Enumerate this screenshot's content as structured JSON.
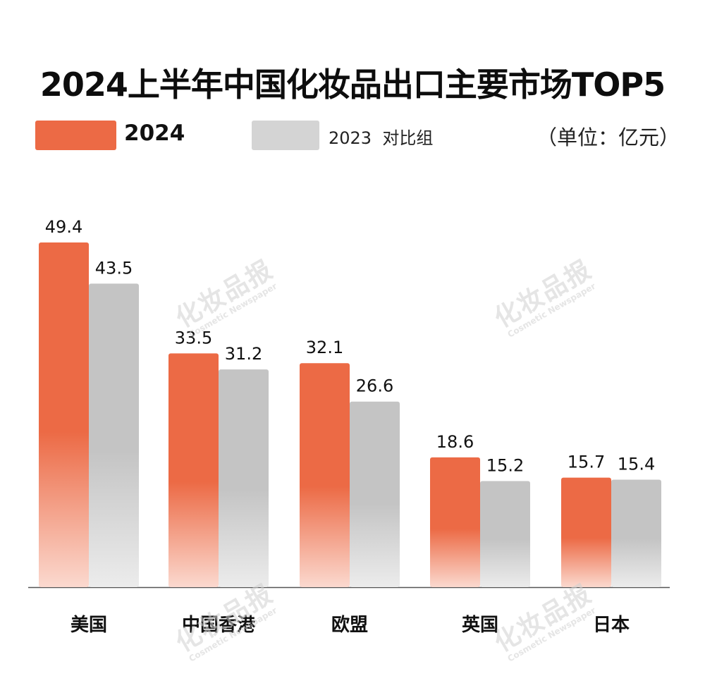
{
  "title": "2024上半年中国化妆品出口主要市场TOP5",
  "legend": {
    "primary_label": "2024",
    "secondary_label": "2023  对比组",
    "unit_label": "（单位：亿元）"
  },
  "watermark": {
    "main": "化妆品报",
    "sub": "Cosmetic Newspaper"
  },
  "colors": {
    "primary": "#ec6a45",
    "primary_fade": "#fbd9cf",
    "secondary": "#c4c4c4",
    "secondary_fade": "#ececec",
    "axis": "#555555"
  },
  "chart_data": {
    "type": "bar",
    "title": "2024上半年中国化妆品出口主要市场TOP5",
    "categories": [
      "美国",
      "中国香港",
      "欧盟",
      "英国",
      "日本"
    ],
    "series": [
      {
        "name": "2024",
        "values": [
          49.4,
          33.5,
          32.1,
          18.6,
          15.7
        ]
      },
      {
        "name": "2023  对比组",
        "values": [
          43.5,
          31.2,
          26.6,
          15.2,
          15.4
        ]
      }
    ],
    "unit": "（单位：亿元）",
    "xlabel": "",
    "ylabel": "",
    "ylim": [
      0,
      49.4
    ],
    "grid": false,
    "legend_position": "top-left"
  }
}
